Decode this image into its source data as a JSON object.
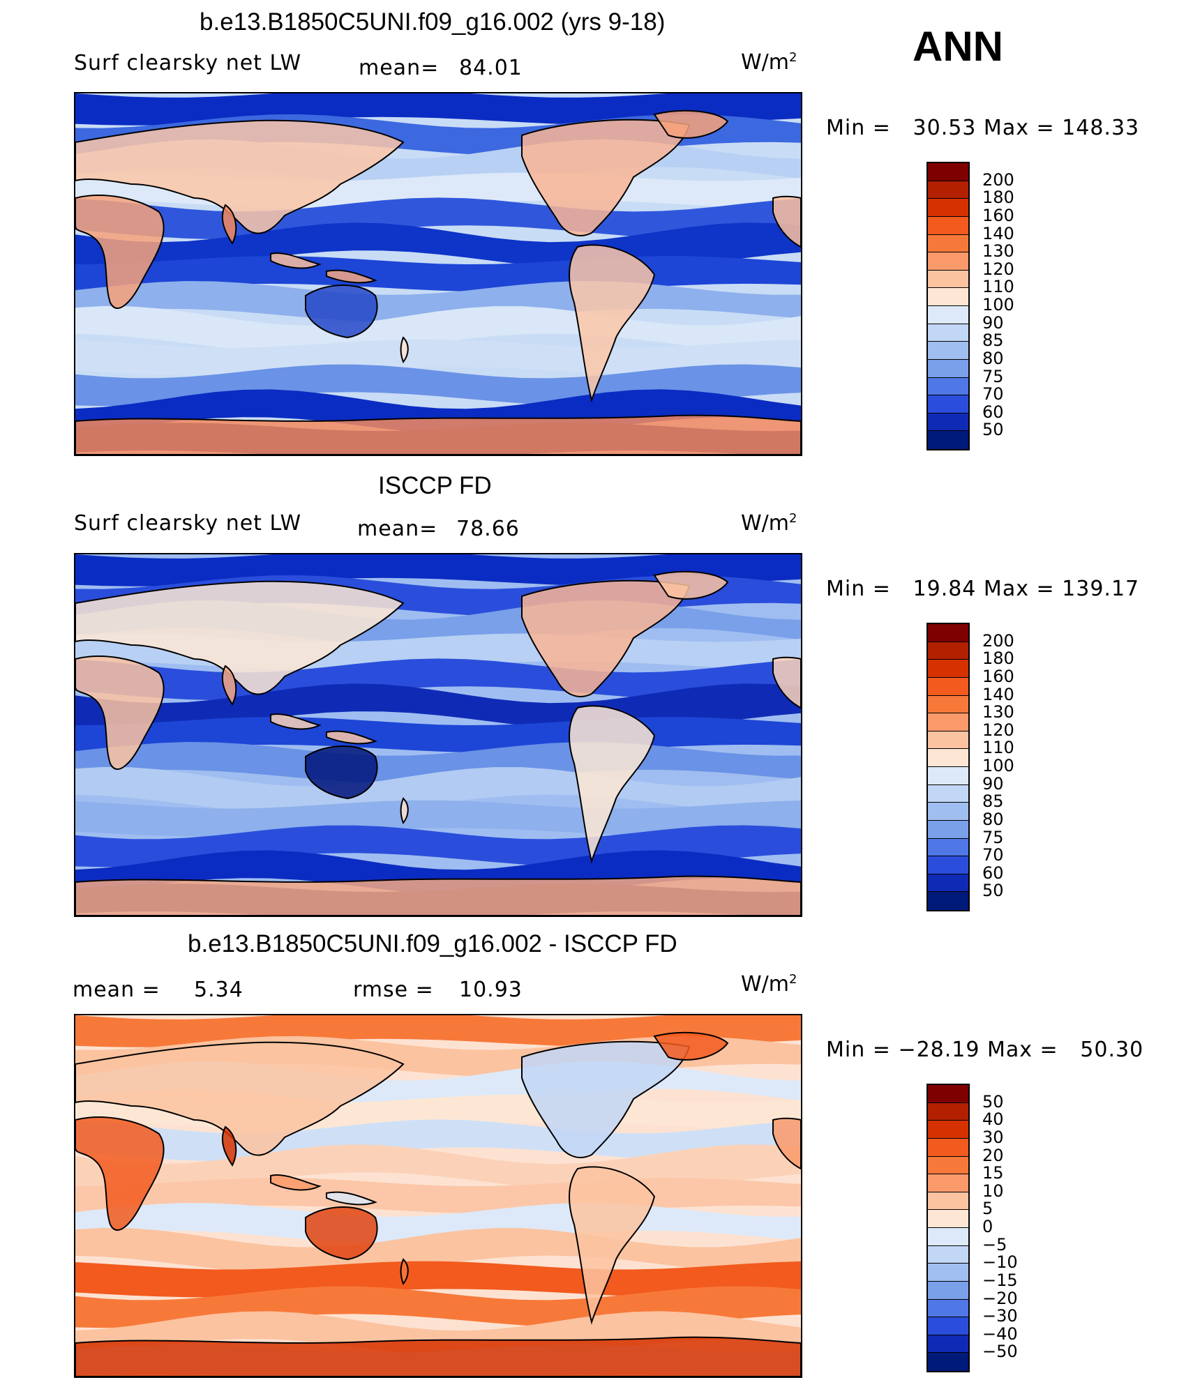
{
  "season": "ANN",
  "panels": [
    {
      "title": "b.e13.B1850C5UNI.f09_g16.002 (yrs 9-18)",
      "left_label": "Surf clearsky net LW",
      "stat1_label": "mean=",
      "stat1_value": "84.01",
      "stat2_label": "",
      "stat2_value": "",
      "units": "W/m",
      "units_sup": "2",
      "minmax": "Min =   30.53 Max = 148.33",
      "colorbar": {
        "levels": [
          "200",
          "180",
          "160",
          "140",
          "130",
          "120",
          "110",
          "100",
          "90",
          "85",
          "80",
          "75",
          "70",
          "60",
          "50"
        ],
        "colors": [
          "#7f0000",
          "#b22000",
          "#d63200",
          "#f25a1e",
          "#f7793a",
          "#fa9a6a",
          "#fbc3a0",
          "#fde7d4",
          "#dde9f8",
          "#c2d6f5",
          "#a1bef0",
          "#7aa0ea",
          "#4f78e6",
          "#2a4edb",
          "#0f2bb6",
          "#001a7a"
        ]
      },
      "map": {
        "background": "#c8dcf5",
        "bands": [
          "#0b2cc2",
          "#3c68e0",
          "#b8d0f3",
          "#dde9f8",
          "#3057db",
          "#0e34c8",
          "#1d46d6",
          "#8eb0ec",
          "#d9e7f8",
          "#cfe0f6",
          "#6a92e6",
          "#0b2cc2",
          "#001a7a"
        ],
        "land": [
          "#f7a27a",
          "#fcc7a8",
          "#f48a5e",
          "#fbbf9d",
          "#f6a882",
          "#2648c8",
          "#fde2d2",
          "#f9b594"
        ]
      },
      "chart_data": {
        "type": "heatmap",
        "title": "b.e13.B1850C5UNI.f09_g16.002 (yrs 9-18)",
        "subtitle": "Surf clearsky net LW",
        "mean": 84.01,
        "min": 30.53,
        "max": 148.33,
        "units": "W/m2",
        "levels": [
          50,
          60,
          70,
          75,
          80,
          85,
          90,
          100,
          110,
          120,
          130,
          140,
          160,
          180,
          200
        ]
      }
    },
    {
      "title": "ISCCP FD",
      "left_label": "Surf clearsky net LW",
      "stat1_label": "mean=",
      "stat1_value": "78.66",
      "stat2_label": "",
      "stat2_value": "",
      "units": "W/m",
      "units_sup": "2",
      "minmax": "Min =   19.84 Max = 139.17",
      "colorbar": {
        "levels": [
          "200",
          "180",
          "160",
          "140",
          "130",
          "120",
          "110",
          "100",
          "90",
          "85",
          "80",
          "75",
          "70",
          "60",
          "50"
        ],
        "colors": [
          "#7f0000",
          "#b22000",
          "#d63200",
          "#f25a1e",
          "#f7793a",
          "#fa9a6a",
          "#fbc3a0",
          "#fde7d4",
          "#dde9f8",
          "#c2d6f5",
          "#a1bef0",
          "#7aa0ea",
          "#4f78e6",
          "#2a4edb",
          "#0f2bb6",
          "#001a7a"
        ]
      },
      "map": {
        "background": "#9fbdf0",
        "bands": [
          "#0b2cc2",
          "#2a4edb",
          "#7aa0ea",
          "#b8d0f3",
          "#2a4edb",
          "#0f2bb6",
          "#1d46d6",
          "#6a92e6",
          "#b2cbf2",
          "#8eb0ec",
          "#2a4edb",
          "#0b2cc2",
          "#001a7a"
        ],
        "land": [
          "#fbc3a0",
          "#fde7d4",
          "#f6a882",
          "#fbd2b8",
          "#fcc7a8",
          "#00157a",
          "#fde2d2",
          "#f9b594"
        ]
      },
      "chart_data": {
        "type": "heatmap",
        "title": "ISCCP FD",
        "subtitle": "Surf clearsky net LW",
        "mean": 78.66,
        "min": 19.84,
        "max": 139.17,
        "units": "W/m2",
        "levels": [
          50,
          60,
          70,
          75,
          80,
          85,
          90,
          100,
          110,
          120,
          130,
          140,
          160,
          180,
          200
        ]
      }
    },
    {
      "title": "b.e13.B1850C5UNI.f09_g16.002 - ISCCP FD",
      "left_label": "mean =",
      "stat1_label": "5.34",
      "stat1_value": "",
      "stat2_label": "rmse =",
      "stat2_value": "10.93",
      "units": "W/m",
      "units_sup": "2",
      "minmax": "Min = −28.19 Max =   50.30",
      "colorbar": {
        "levels": [
          "50",
          "40",
          "30",
          "20",
          "15",
          "10",
          "5",
          "0",
          "−5",
          "−10",
          "−15",
          "−20",
          "−30",
          "−40",
          "−50"
        ],
        "colors": [
          "#7f0000",
          "#b22000",
          "#d63200",
          "#f25a1e",
          "#f7793a",
          "#fa9a6a",
          "#fbc3a0",
          "#fde7d4",
          "#dde9f8",
          "#c2d6f5",
          "#a1bef0",
          "#7aa0ea",
          "#4f78e6",
          "#2a4edb",
          "#0f2bb6",
          "#001a7a"
        ]
      },
      "map": {
        "background": "#fde2d2",
        "bands": [
          "#f7793a",
          "#fbc3a0",
          "#dde9f8",
          "#fde7d4",
          "#cfe0f6",
          "#fbd2b8",
          "#fcc7a8",
          "#dde9f8",
          "#fbc3a0",
          "#f25a1e",
          "#f7793a",
          "#fbc3a0",
          "#dde9f8"
        ],
        "land": [
          "#f25a1e",
          "#fbc3a0",
          "#d63200",
          "#fa9a6a",
          "#dde9f8",
          "#e04410",
          "#f7793a",
          "#c2d6f5"
        ]
      },
      "chart_data": {
        "type": "heatmap",
        "title": "b.e13.B1850C5UNI.f09_g16.002 - ISCCP FD",
        "mean": 5.34,
        "rmse": 10.93,
        "min": -28.19,
        "max": 50.3,
        "units": "W/m2",
        "levels": [
          -50,
          -40,
          -30,
          -20,
          -15,
          -10,
          -5,
          0,
          5,
          10,
          15,
          20,
          30,
          40,
          50
        ]
      }
    }
  ]
}
